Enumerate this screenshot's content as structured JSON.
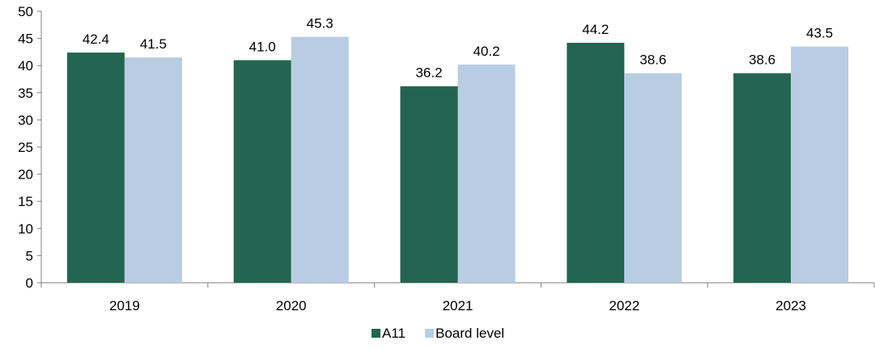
{
  "chart_data": {
    "type": "bar",
    "title": "",
    "xlabel": "",
    "ylabel": "",
    "categories": [
      "2019",
      "2020",
      "2021",
      "2022",
      "2023"
    ],
    "series": [
      {
        "name": "A11",
        "values": [
          42.4,
          41.0,
          36.2,
          44.2,
          38.6
        ],
        "labels": [
          "42.4",
          "41.0",
          "36.2",
          "44.2",
          "38.6"
        ],
        "color": "#236550"
      },
      {
        "name": "Board level",
        "values": [
          41.5,
          45.3,
          40.2,
          38.6,
          43.5
        ],
        "labels": [
          "41.5",
          "45.3",
          "40.2",
          "38.6",
          "43.5"
        ],
        "color": "#b8cce4"
      }
    ],
    "ylim": [
      0,
      50
    ],
    "yticks": [
      "0",
      "5",
      "10",
      "15",
      "20",
      "25",
      "30",
      "35",
      "40",
      "45",
      "50"
    ],
    "grid": false,
    "legend_position": "bottom-center"
  }
}
